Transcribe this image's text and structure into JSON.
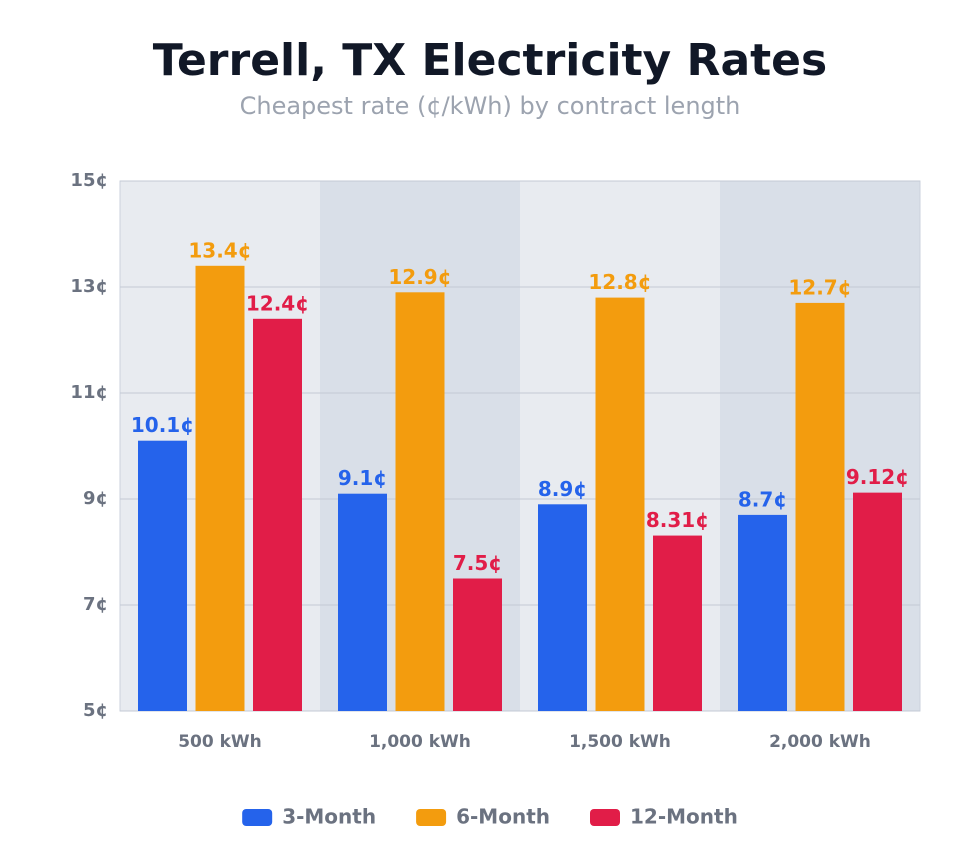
{
  "chart_data": {
    "type": "bar",
    "title": "Terrell, TX Electricity Rates",
    "subtitle": "Cheapest rate (¢/kWh) by contract length",
    "categories": [
      "500 kWh",
      "1,000 kWh",
      "1,500 kWh",
      "2,000 kWh"
    ],
    "series": [
      {
        "name": "3-Month",
        "color": "#2563eb",
        "values": [
          10.1,
          9.1,
          8.9,
          8.7
        ],
        "value_labels": [
          "10.1¢",
          "9.1¢",
          "8.9¢",
          "8.7¢"
        ]
      },
      {
        "name": "6-Month",
        "color": "#f39c0e",
        "values": [
          13.4,
          12.9,
          12.8,
          12.7
        ],
        "value_labels": [
          "13.4¢",
          "12.9¢",
          "12.8¢",
          "12.7¢"
        ]
      },
      {
        "name": "12-Month",
        "color": "#e11d48",
        "values": [
          12.4,
          7.5,
          8.31,
          9.12
        ],
        "value_labels": [
          "12.4¢",
          "7.5¢",
          "8.31¢",
          "9.12¢"
        ]
      }
    ],
    "ylim": [
      5,
      15
    ],
    "yticks": [
      {
        "value": 5,
        "label": "5¢"
      },
      {
        "value": 7,
        "label": "7¢"
      },
      {
        "value": 9,
        "label": "9¢"
      },
      {
        "value": 11,
        "label": "11¢"
      },
      {
        "value": 13,
        "label": "13¢"
      },
      {
        "value": 15,
        "label": "15¢"
      }
    ],
    "grid": true,
    "legend": "bottom"
  }
}
